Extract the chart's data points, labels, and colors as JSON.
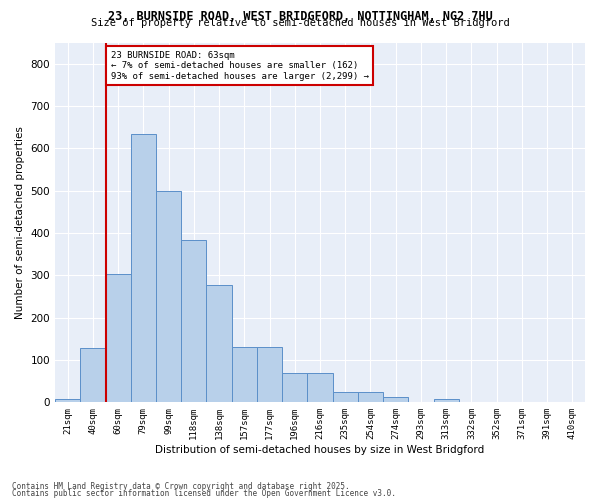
{
  "title1": "23, BURNSIDE ROAD, WEST BRIDGFORD, NOTTINGHAM, NG2 7HU",
  "title2": "Size of property relative to semi-detached houses in West Bridgford",
  "xlabel": "Distribution of semi-detached houses by size in West Bridgford",
  "ylabel": "Number of semi-detached properties",
  "bins": [
    "21sqm",
    "40sqm",
    "60sqm",
    "79sqm",
    "99sqm",
    "118sqm",
    "138sqm",
    "157sqm",
    "177sqm",
    "196sqm",
    "216sqm",
    "235sqm",
    "254sqm",
    "274sqm",
    "293sqm",
    "313sqm",
    "332sqm",
    "352sqm",
    "371sqm",
    "391sqm",
    "410sqm"
  ],
  "values": [
    8,
    128,
    303,
    635,
    500,
    383,
    278,
    130,
    130,
    70,
    70,
    25,
    25,
    12,
    0,
    8,
    0,
    0,
    0,
    0,
    0
  ],
  "annotation_title": "23 BURNSIDE ROAD: 63sqm",
  "annotation_line1": "← 7% of semi-detached houses are smaller (162)",
  "annotation_line2": "93% of semi-detached houses are larger (2,299) →",
  "property_line_x": 2,
  "bar_color": "#b8d0ea",
  "bar_edge_color": "#5b8fc9",
  "line_color": "#cc0000",
  "annotation_box_edge": "#cc0000",
  "background_color": "#e8eef8",
  "footer1": "Contains HM Land Registry data © Crown copyright and database right 2025.",
  "footer2": "Contains public sector information licensed under the Open Government Licence v3.0.",
  "ylim": [
    0,
    850
  ],
  "yticks": [
    0,
    100,
    200,
    300,
    400,
    500,
    600,
    700,
    800
  ]
}
